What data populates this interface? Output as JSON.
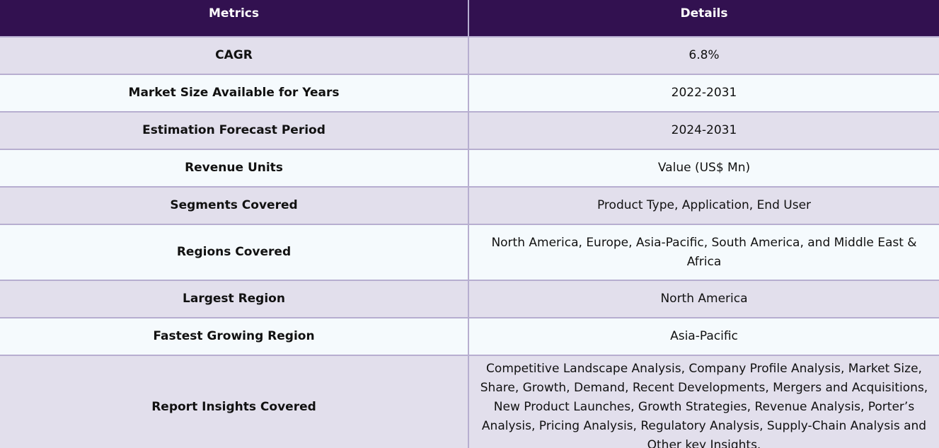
{
  "table": {
    "headers": [
      "Metrics",
      "Details"
    ],
    "rows": [
      {
        "metric": "CAGR",
        "detail": "6.8%"
      },
      {
        "metric": "Market Size Available for Years",
        "detail": "2022-2031"
      },
      {
        "metric": "Estimation Forecast Period",
        "detail": "2024-2031"
      },
      {
        "metric": "Revenue Units",
        "detail": "Value (US$ Mn)"
      },
      {
        "metric": "Segments Covered",
        "detail": "Product Type, Application, End User"
      },
      {
        "metric": "Regions Covered",
        "detail": "North America, Europe, Asia-Pacific, South America, and Middle East & Africa"
      },
      {
        "metric": "Largest Region",
        "detail": "North America"
      },
      {
        "metric": "Fastest Growing Region",
        "detail": "Asia-Pacific"
      },
      {
        "metric": "Report Insights Covered",
        "detail": "Competitive Landscape Analysis, Company Profile Analysis, Market Size, Share, Growth, Demand, Recent Developments, Mergers and Acquisitions, New Product Launches, Growth Strategies, Revenue Analysis, Porter’s Analysis, Pricing Analysis, Regulatory Analysis, Supply-Chain Analysis and Other key Insights."
      }
    ]
  }
}
